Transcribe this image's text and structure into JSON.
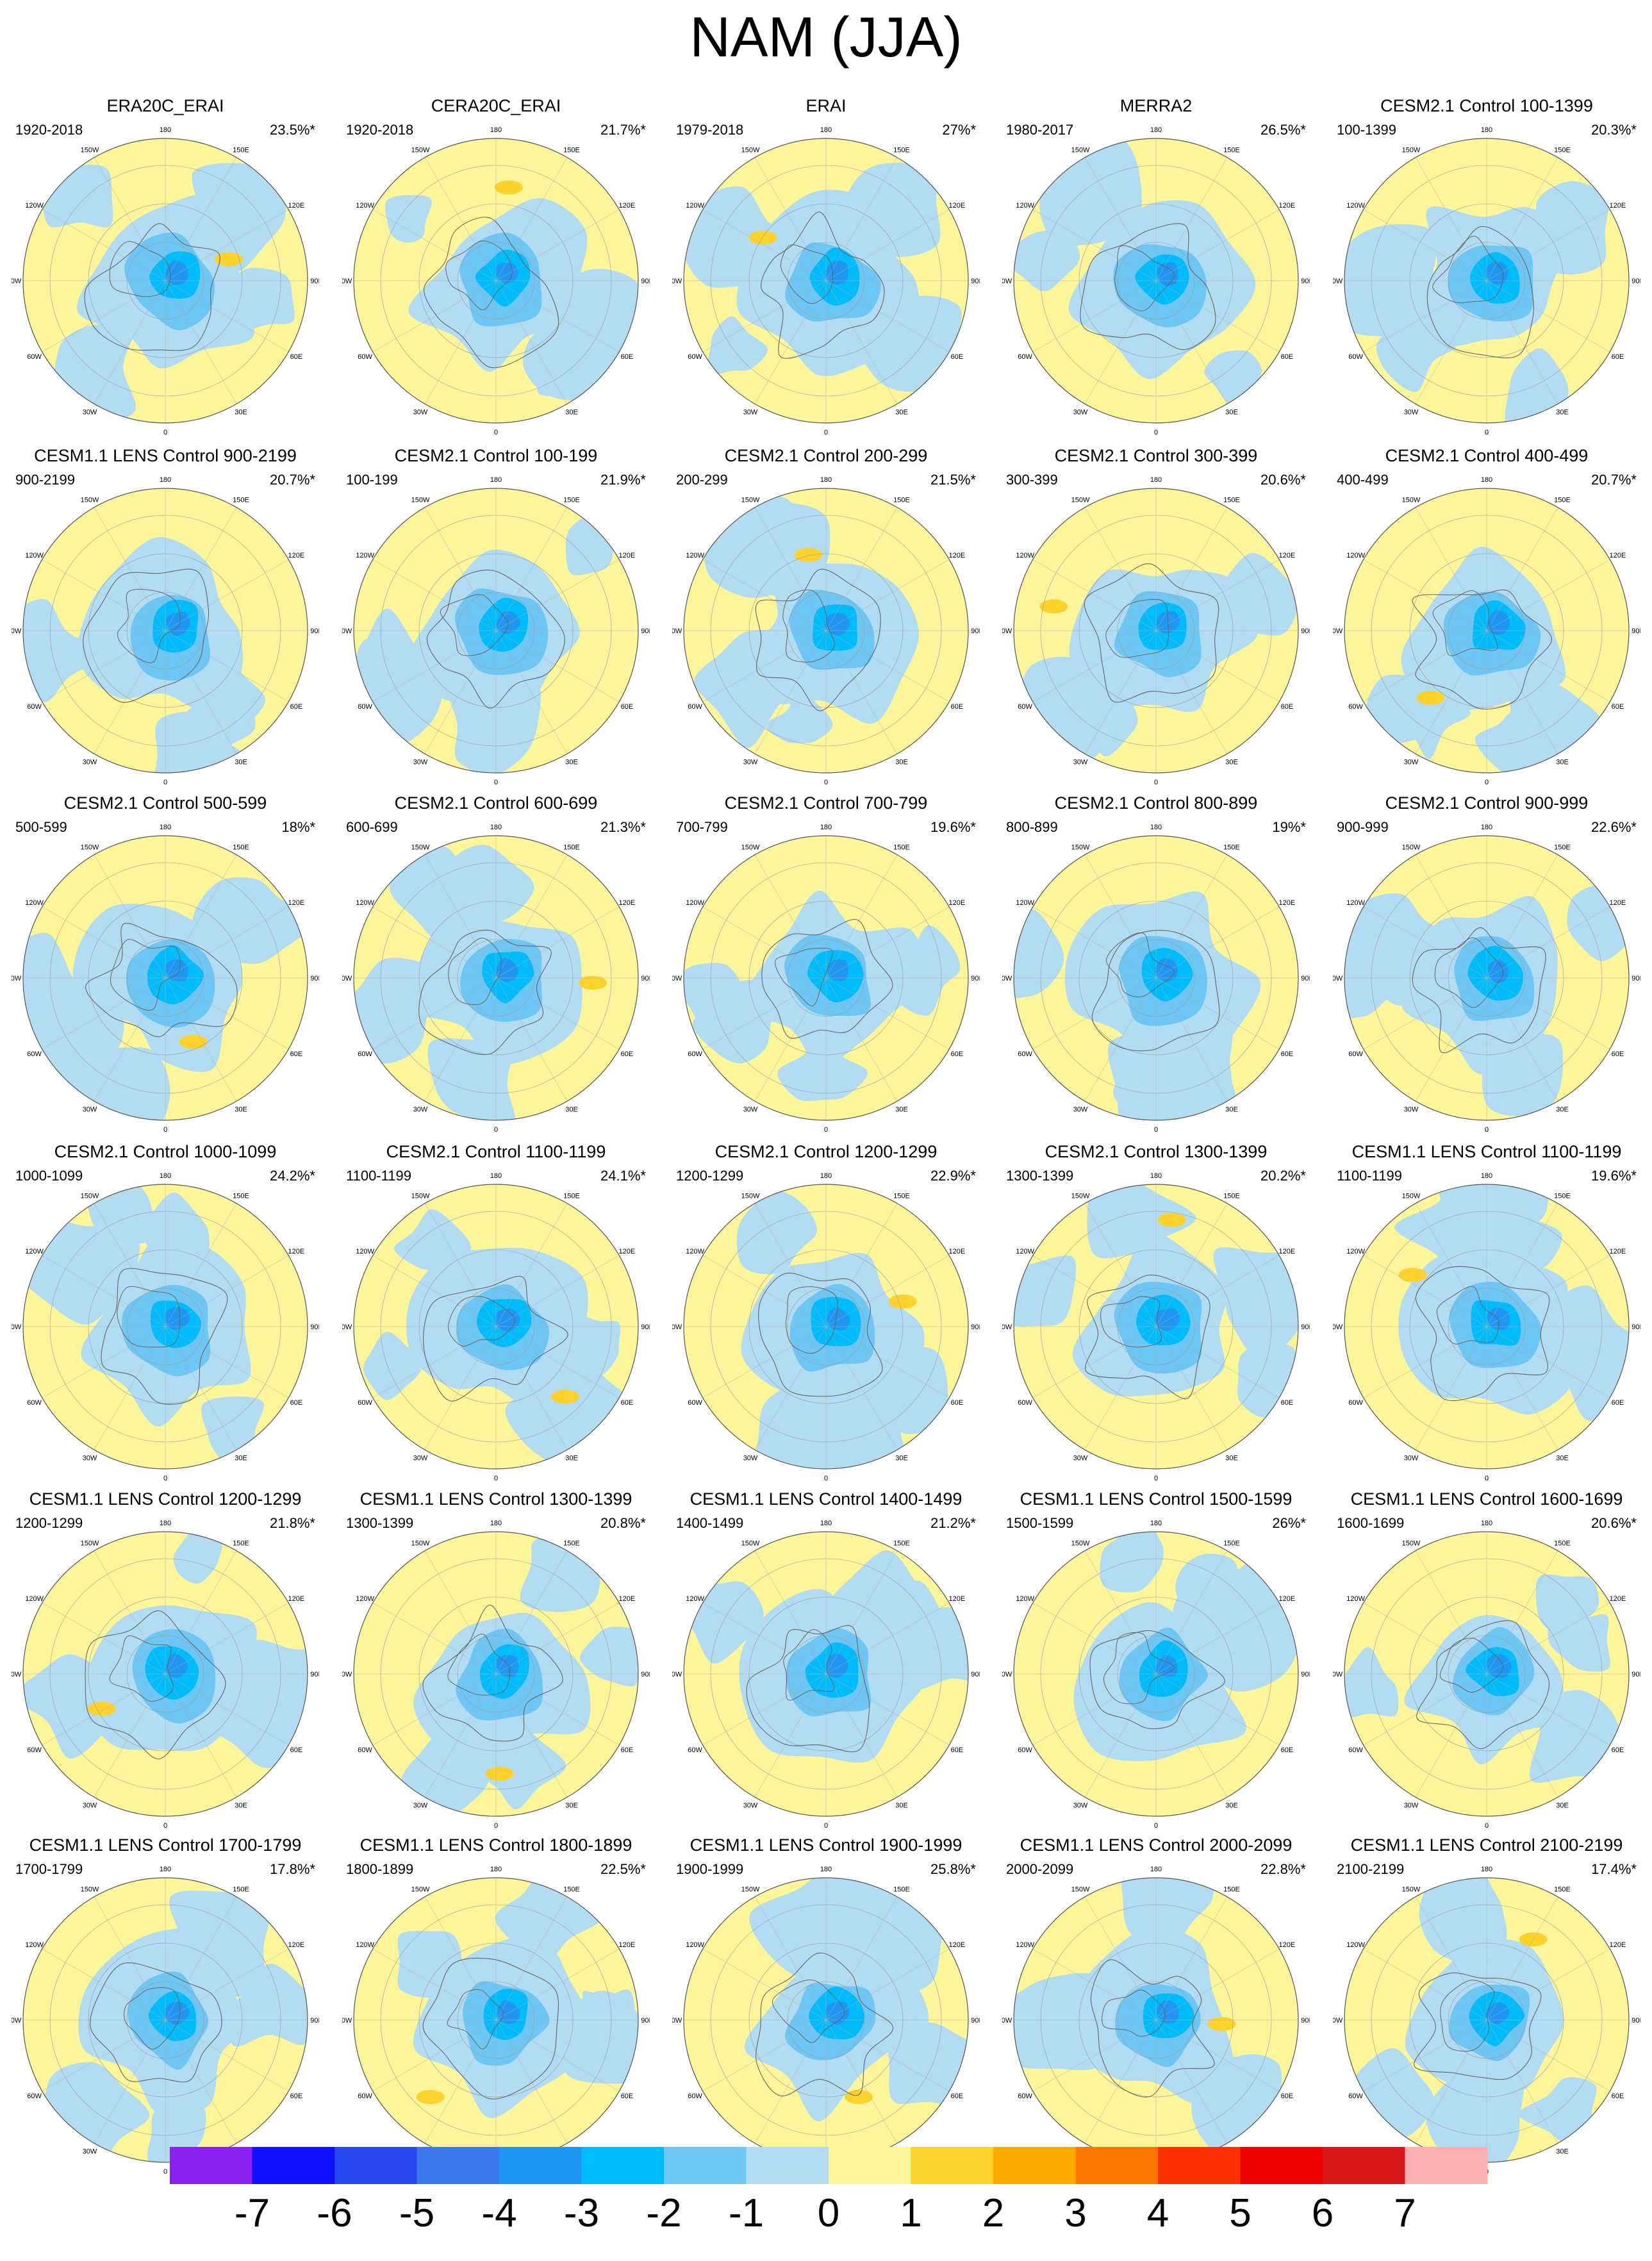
{
  "title": "NAM (JJA)",
  "longitude_labels": [
    "180",
    "150W",
    "150E",
    "120W",
    "120E",
    "90W",
    "90E",
    "60W",
    "60E",
    "30W",
    "30E",
    "0"
  ],
  "colors": {
    "-7": "#8b20f0",
    "-6": "#1010ff",
    "-5": "#2646f0",
    "-4": "#3a78ec",
    "-3": "#1f96f2",
    "-2": "#00bcfa",
    "-1": "#6ec6f4",
    "0": "#b2dcf2",
    "1": "#fcf59a",
    "2": "#fdd22c",
    "3": "#fdaa00",
    "4": "#fd7800",
    "5": "#fd3200",
    "6": "#ee0000",
    "7": "#d81818",
    "8": "#fdb0b2"
  },
  "chart_data": {
    "type": "heatmap",
    "projection": "north polar stereographic",
    "grid": "5 columns x 6 rows",
    "panels": [
      {
        "title": "ERA20C_ERAI",
        "years": "1920-2018",
        "variance": "23.5%*"
      },
      {
        "title": "CERA20C_ERAI",
        "years": "1920-2018",
        "variance": "21.7%*"
      },
      {
        "title": "ERAI",
        "years": "1979-2018",
        "variance": "27%*"
      },
      {
        "title": "MERRA2",
        "years": "1980-2017",
        "variance": "26.5%*"
      },
      {
        "title": "CESM2.1 Control 100-1399",
        "years": "100-1399",
        "variance": "20.3%*"
      },
      {
        "title": "CESM1.1 LENS Control 900-2199",
        "years": "900-2199",
        "variance": "20.7%*"
      },
      {
        "title": "CESM2.1 Control 100-199",
        "years": "100-199",
        "variance": "21.9%*"
      },
      {
        "title": "CESM2.1 Control 200-299",
        "years": "200-299",
        "variance": "21.5%*"
      },
      {
        "title": "CESM2.1 Control 300-399",
        "years": "300-399",
        "variance": "20.6%*"
      },
      {
        "title": "CESM2.1 Control 400-499",
        "years": "400-499",
        "variance": "20.7%*"
      },
      {
        "title": "CESM2.1 Control 500-599",
        "years": "500-599",
        "variance": "18%*"
      },
      {
        "title": "CESM2.1 Control 600-699",
        "years": "600-699",
        "variance": "21.3%*"
      },
      {
        "title": "CESM2.1 Control 700-799",
        "years": "700-799",
        "variance": "19.6%*"
      },
      {
        "title": "CESM2.1 Control 800-899",
        "years": "800-899",
        "variance": "19%*"
      },
      {
        "title": "CESM2.1 Control 900-999",
        "years": "900-999",
        "variance": "22.6%*"
      },
      {
        "title": "CESM2.1 Control 1000-1099",
        "years": "1000-1099",
        "variance": "24.2%*"
      },
      {
        "title": "CESM2.1 Control 1100-1199",
        "years": "1100-1199",
        "variance": "24.1%*"
      },
      {
        "title": "CESM2.1 Control 1200-1299",
        "years": "1200-1299",
        "variance": "22.9%*"
      },
      {
        "title": "CESM2.1 Control 1300-1399",
        "years": "1300-1399",
        "variance": "20.2%*"
      },
      {
        "title": "CESM1.1 LENS Control 1100-1199",
        "years": "1100-1199",
        "variance": "19.6%*"
      },
      {
        "title": "CESM1.1 LENS Control 1200-1299",
        "years": "1200-1299",
        "variance": "21.8%*"
      },
      {
        "title": "CESM1.1 LENS Control 1300-1399",
        "years": "1300-1399",
        "variance": "20.8%*"
      },
      {
        "title": "CESM1.1 LENS Control 1400-1499",
        "years": "1400-1499",
        "variance": "21.2%*"
      },
      {
        "title": "CESM1.1 LENS Control 1500-1599",
        "years": "1500-1599",
        "variance": "26%*"
      },
      {
        "title": "CESM1.1 LENS Control 1600-1699",
        "years": "1600-1699",
        "variance": "20.6%*"
      },
      {
        "title": "CESM1.1 LENS Control 1700-1799",
        "years": "1700-1799",
        "variance": "17.8%*"
      },
      {
        "title": "CESM1.1 LENS Control 1800-1899",
        "years": "1800-1899",
        "variance": "22.5%*"
      },
      {
        "title": "CESM1.1 LENS Control 1900-1999",
        "years": "1900-1999",
        "variance": "25.8%*"
      },
      {
        "title": "CESM1.1 LENS Control 2000-2099",
        "years": "2000-2099",
        "variance": "22.8%*"
      },
      {
        "title": "CESM1.1 LENS Control 2100-2199",
        "years": "2100-2199",
        "variance": "17.4%*"
      }
    ],
    "colorbar": {
      "labels": [
        "-7",
        "-6",
        "-5",
        "-4",
        "-3",
        "-2",
        "-1",
        "0",
        "1",
        "2",
        "3",
        "4",
        "5",
        "6",
        "7"
      ],
      "boundaries": [
        -7,
        -6,
        -5,
        -4,
        -3,
        -2,
        -1,
        0,
        1,
        2,
        3,
        4,
        5,
        6,
        7
      ],
      "orientation": "horizontal",
      "placement": "bottom"
    }
  }
}
